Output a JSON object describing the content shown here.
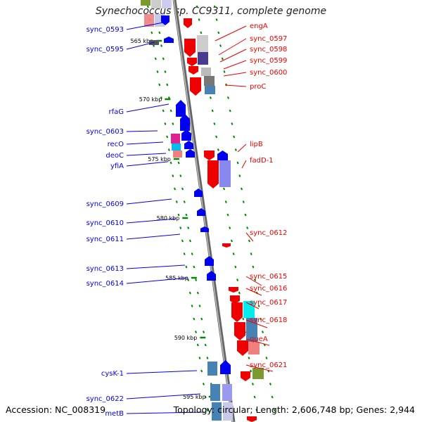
{
  "title": "Synechococcus sp. CC9311, complete genome",
  "footer": {
    "accession": "Accession: NC_008319",
    "topology": "Topology: circular; Length: 2,606,748 bp; Genes: 2,944"
  },
  "colors": {
    "forward": "#0000ee",
    "reverse": "#ee0000",
    "tick": "#008800",
    "axis": "#888888"
  },
  "axis": {
    "start_bp": 561500,
    "end_bp": 596500,
    "ticks": [
      "565 kbp",
      "570 kbp",
      "575 kbp",
      "580 kbp",
      "585 kbp",
      "590 kbp",
      "595 kbp"
    ]
  },
  "left_labels": [
    "sync_0593",
    "sync_0595",
    "rfaG",
    "sync_0603",
    "recO",
    "deoC",
    "yfiA",
    "sync_0609",
    "sync_0610",
    "sync_0611",
    "sync_0613",
    "sync_0614",
    "cysK-1",
    "sync_0622",
    "metB"
  ],
  "right_labels": [
    "engA",
    "sync_0597",
    "sync_0598",
    "sync_0599",
    "sync_0600",
    "proC",
    "lipB",
    "fadD-1",
    "sync_0612",
    "sync_0615",
    "sync_0616",
    "sync_0617",
    "sync_0618",
    "queA",
    "sync_0621"
  ]
}
